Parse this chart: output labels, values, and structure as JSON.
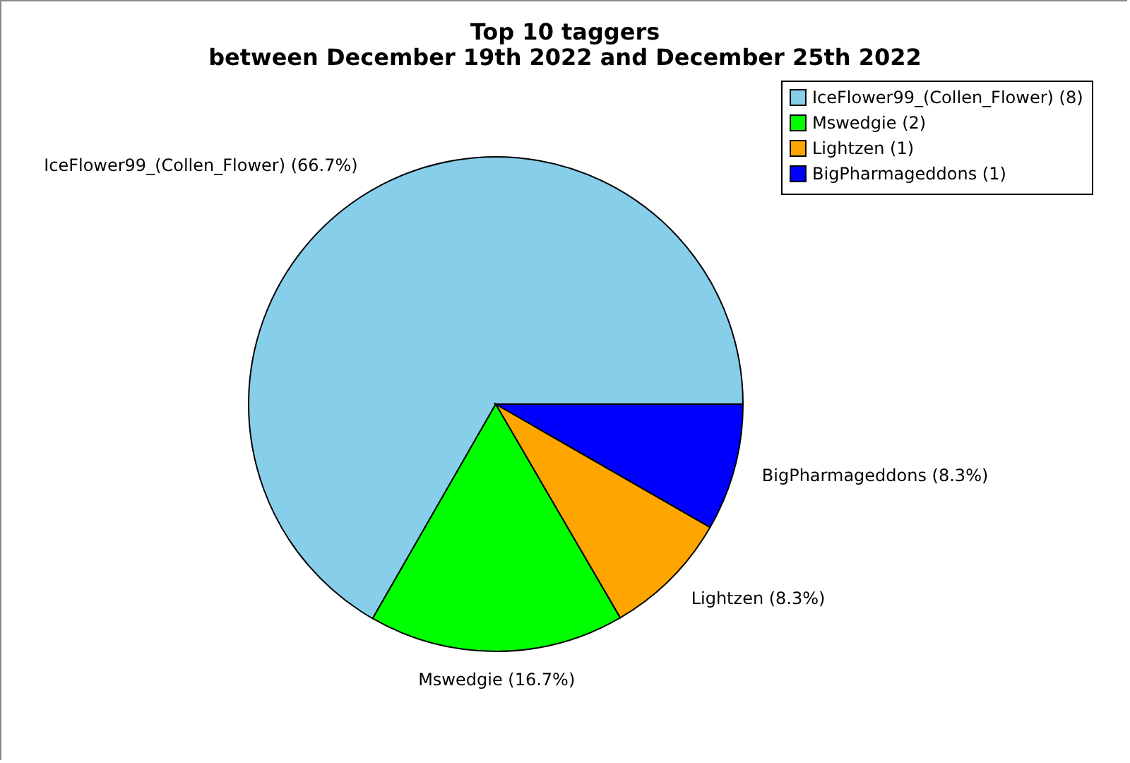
{
  "chart_data": {
    "type": "pie",
    "title": "Top 10 taggers",
    "subtitle": "between December 19th 2022 and December 25th 2022",
    "categories": [
      "IceFlower99_(Collen_Flower) (8)",
      "Mswedgie (2)",
      "Lightzen (1)",
      "BigPharmageddons (1)"
    ],
    "values": [
      66.7,
      16.7,
      8.3,
      8.3
    ],
    "value_labels": [
      "IceFlower99_(Collen_Flower) (66.7%)",
      "Mswedgie (16.7%)",
      "Lightzen (8.3%)",
      "BigPharmageddons (8.3%)"
    ],
    "colors": [
      "#87ceeb",
      "#00ff00",
      "#ffa500",
      "#0000ff"
    ],
    "legend": "top right"
  }
}
